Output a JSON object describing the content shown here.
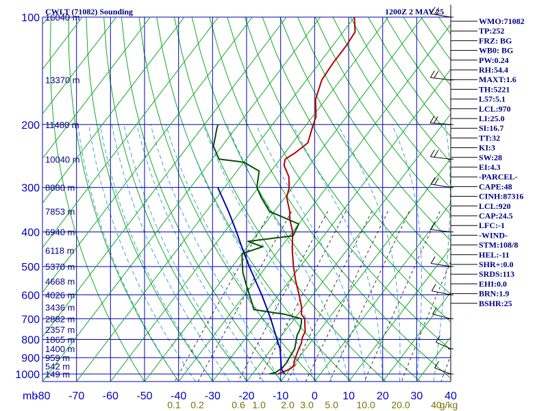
{
  "chart_data": {
    "type": "skew-t sounding",
    "title": "CWLT (71082) Sounding",
    "time_label": "1200Z  2 MAY 25",
    "y_axis": {
      "label": "mb",
      "scale": "log pressure",
      "range_mb": [
        100,
        1050
      ],
      "ticks": [
        100,
        200,
        300,
        400,
        500,
        600,
        700,
        800,
        900,
        1000
      ]
    },
    "x_axis": {
      "label": "temperature (C), skewed",
      "ticks": [
        -80,
        -70,
        -60,
        -50,
        -40,
        -30,
        -20,
        -10,
        0,
        10,
        20,
        30,
        40
      ],
      "range": [
        -80,
        40
      ],
      "skew_at_100mb": 80
    },
    "height_labels": [
      {
        "p": 100,
        "text": "16040 m"
      },
      {
        "p": 150,
        "text": "13370 m"
      },
      {
        "p": 200,
        "text": "11480 m"
      },
      {
        "p": 250,
        "text": "10040 m"
      },
      {
        "p": 300,
        "text": "8880 m"
      },
      {
        "p": 350,
        "text": "7853 m"
      },
      {
        "p": 400,
        "text": "6940 m"
      },
      {
        "p": 450,
        "text": "6118 m"
      },
      {
        "p": 500,
        "text": "5370 m"
      },
      {
        "p": 550,
        "text": "4668 m"
      },
      {
        "p": 600,
        "text": "4026 m"
      },
      {
        "p": 650,
        "text": "3436 m"
      },
      {
        "p": 700,
        "text": "2882 m"
      },
      {
        "p": 750,
        "text": "2357 m"
      },
      {
        "p": 800,
        "text": "1865 m"
      },
      {
        "p": 850,
        "text": "1400 m"
      },
      {
        "p": 900,
        "text": "959 m"
      },
      {
        "p": 950,
        "text": "542 m"
      },
      {
        "p": 1000,
        "text": "149 m"
      }
    ],
    "mixing_ratio_labels": [
      "0.1",
      "0.2",
      "0.6",
      "1.0",
      "2.0",
      "3.0",
      "5.0",
      "10.0",
      "20.0",
      "40",
      "g/kg"
    ],
    "series": [
      {
        "name": "temperature",
        "color": "#b00000",
        "points": [
          {
            "p": 1000,
            "t": -12.5
          },
          {
            "p": 975,
            "t": -10.5
          },
          {
            "p": 950,
            "t": -9.5
          },
          {
            "p": 925,
            "t": -10.5
          },
          {
            "p": 900,
            "t": -11.0
          },
          {
            "p": 850,
            "t": -12.0
          },
          {
            "p": 820,
            "t": -12.5
          },
          {
            "p": 790,
            "t": -13.5
          },
          {
            "p": 760,
            "t": -14.0
          },
          {
            "p": 730,
            "t": -15.5
          },
          {
            "p": 700,
            "t": -17.0
          },
          {
            "p": 680,
            "t": -19.0
          },
          {
            "p": 650,
            "t": -20.5
          },
          {
            "p": 600,
            "t": -24.0
          },
          {
            "p": 550,
            "t": -28.0
          },
          {
            "p": 500,
            "t": -32.0
          },
          {
            "p": 450,
            "t": -36.0
          },
          {
            "p": 400,
            "t": -40.0
          },
          {
            "p": 370,
            "t": -43.5
          },
          {
            "p": 350,
            "t": -45.5
          },
          {
            "p": 320,
            "t": -49.5
          },
          {
            "p": 300,
            "t": -51.0
          },
          {
            "p": 280,
            "t": -53.5
          },
          {
            "p": 260,
            "t": -57.5
          },
          {
            "p": 250,
            "t": -58.5
          },
          {
            "p": 240,
            "t": -57.0
          },
          {
            "p": 225,
            "t": -55.5
          },
          {
            "p": 205,
            "t": -57.5
          },
          {
            "p": 190,
            "t": -59.0
          },
          {
            "p": 170,
            "t": -63.0
          },
          {
            "p": 150,
            "t": -65.5
          },
          {
            "p": 135,
            "t": -66.0
          },
          {
            "p": 120,
            "t": -66.0
          },
          {
            "p": 110,
            "t": -66.5
          },
          {
            "p": 100,
            "t": -70.0
          }
        ]
      },
      {
        "name": "dewpoint",
        "color": "#005000",
        "points": [
          {
            "p": 1000,
            "t": -15.0
          },
          {
            "p": 990,
            "t": -13.5
          },
          {
            "p": 960,
            "t": -12.5
          },
          {
            "p": 925,
            "t": -12.5
          },
          {
            "p": 900,
            "t": -12.8
          },
          {
            "p": 850,
            "t": -13.2
          },
          {
            "p": 810,
            "t": -14.5
          },
          {
            "p": 780,
            "t": -15.5
          },
          {
            "p": 750,
            "t": -16.0
          },
          {
            "p": 720,
            "t": -17.0
          },
          {
            "p": 700,
            "t": -18.0
          },
          {
            "p": 680,
            "t": -24.0
          },
          {
            "p": 660,
            "t": -34.0
          },
          {
            "p": 620,
            "t": -37.0
          },
          {
            "p": 560,
            "t": -42.0
          },
          {
            "p": 520,
            "t": -45.5
          },
          {
            "p": 480,
            "t": -48.5
          },
          {
            "p": 460,
            "t": -50.0
          },
          {
            "p": 440,
            "t": -45.5
          },
          {
            "p": 425,
            "t": -51.0
          },
          {
            "p": 410,
            "t": -39.0
          },
          {
            "p": 380,
            "t": -40.0
          },
          {
            "p": 350,
            "t": -51.5
          },
          {
            "p": 320,
            "t": -57.0
          },
          {
            "p": 300,
            "t": -60.5
          },
          {
            "p": 270,
            "t": -63.5
          },
          {
            "p": 255,
            "t": -70.0
          },
          {
            "p": 250,
            "t": -78.0
          },
          {
            "p": 230,
            "t": -82.5
          },
          {
            "p": 205,
            "t": -85.5
          },
          {
            "p": 200,
            "t": -86.0
          }
        ]
      },
      {
        "name": "parcel",
        "color": "#0000b0",
        "points": [
          {
            "p": 1000,
            "t": -10.5
          },
          {
            "p": 970,
            "t": -12.5
          },
          {
            "p": 920,
            "t": -14.5
          },
          {
            "p": 850,
            "t": -17.5
          },
          {
            "p": 800,
            "t": -20.5
          },
          {
            "p": 700,
            "t": -27.0
          },
          {
            "p": 600,
            "t": -35.0
          },
          {
            "p": 500,
            "t": -45.0
          },
          {
            "p": 450,
            "t": -50.5
          },
          {
            "p": 400,
            "t": -56.5
          },
          {
            "p": 350,
            "t": -63.5
          },
          {
            "p": 300,
            "t": -72.0
          }
        ]
      }
    ],
    "wind_barbs": [
      {
        "p": 100,
        "dir": 290,
        "speed": 20
      },
      {
        "p": 150,
        "dir": 285,
        "speed": 15
      },
      {
        "p": 200,
        "dir": 280,
        "speed": 15
      },
      {
        "p": 250,
        "dir": 285,
        "speed": 20
      },
      {
        "p": 300,
        "dir": 290,
        "speed": 15
      },
      {
        "p": 400,
        "dir": 285,
        "speed": 10
      },
      {
        "p": 500,
        "dir": 290,
        "speed": 10
      },
      {
        "p": 600,
        "dir": 295,
        "speed": 10
      },
      {
        "p": 700,
        "dir": 300,
        "speed": 10
      },
      {
        "p": 850,
        "dir": 315,
        "speed": 10
      },
      {
        "p": 1000,
        "dir": 310,
        "speed": 5
      }
    ],
    "indices": [
      {
        "label": "WMO:71082"
      },
      {
        "label": "TP:252"
      },
      {
        "label": "FRZ: BG"
      },
      {
        "label": "WB0: BG"
      },
      {
        "label": "PW:0.24"
      },
      {
        "label": "RH:54.4"
      },
      {
        "label": "MAXT:1.6"
      },
      {
        "label": "TH:5221"
      },
      {
        "label": "L57:5.1"
      },
      {
        "label": "LCL:970"
      },
      {
        "label": "LI:25.0"
      },
      {
        "label": "SI:16.7"
      },
      {
        "label": "TT:32"
      },
      {
        "label": "KI:3"
      },
      {
        "label": "SW:28"
      },
      {
        "label": "EI:4.3"
      },
      {
        "label": "-PARCEL-"
      },
      {
        "label": "CAPE:48"
      },
      {
        "label": "CINH:87316"
      },
      {
        "label": "LCL:920"
      },
      {
        "label": "CAP:24.5"
      },
      {
        "label": "LFC:-1"
      },
      {
        "label": "-WIND-"
      },
      {
        "label": "STM:108/8"
      },
      {
        "label": "HEL:-11"
      },
      {
        "label": "SHR+:0.0"
      },
      {
        "label": "SRDS:113"
      },
      {
        "label": "EHI:0.0"
      },
      {
        "label": "BRN:1.9"
      },
      {
        "label": "BSHR:25"
      }
    ]
  }
}
